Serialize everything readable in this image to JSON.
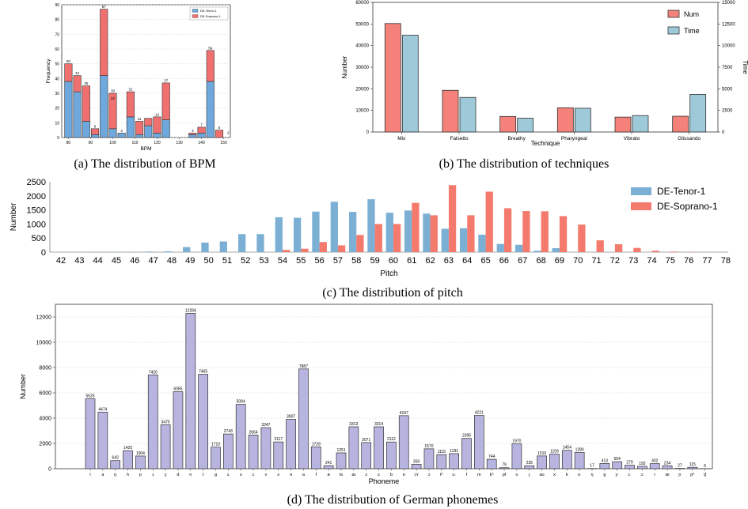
{
  "captions": {
    "a": "(a) The distribution of BPM",
    "b": "(b) The distribution of techniques",
    "c": "(c) The distribution of pitch",
    "d": "(d) The distribution of German phonemes"
  },
  "colors": {
    "tenor_bpm": "#6fa8dc",
    "soprano_bpm": "#f07070",
    "num": "#f4827a",
    "time": "#9ec9d9",
    "tenor_pitch": "#7bafd4",
    "soprano_pitch": "#f47a6e",
    "phoneme": "#b8b4e0"
  },
  "chart_data": [
    {
      "type": "bar",
      "stacked": true,
      "xlabel": "BPM",
      "ylabel": "Frequency",
      "ylim": [
        0,
        90
      ],
      "yticks": [
        0,
        10,
        20,
        30,
        40,
        50,
        60,
        70,
        80,
        90
      ],
      "xticks": [
        80,
        90,
        100,
        110,
        120,
        130,
        140,
        150
      ],
      "x": [
        80,
        84,
        88,
        92,
        96,
        100,
        104,
        108,
        112,
        116,
        120,
        124,
        128,
        136,
        140,
        144,
        148
      ],
      "series": [
        {
          "name": "DE-Tenor-1",
          "values": [
            38,
            31,
            11,
            2,
            42,
            6,
            3,
            14,
            2,
            8,
            3,
            12,
            0,
            2,
            3,
            38,
            0
          ]
        },
        {
          "name": "DE-Soprano-1",
          "values": [
            12,
            11,
            24,
            4,
            45,
            24,
            0,
            17,
            9,
            5,
            11,
            25,
            0,
            1,
            4,
            21,
            5
          ]
        }
      ],
      "totals": [
        50,
        42,
        35,
        6,
        87,
        30,
        3,
        31,
        11,
        13,
        14,
        37,
        0,
        3,
        7,
        59,
        5
      ],
      "total_labels": [
        "50",
        "42",
        "35",
        "6",
        "87",
        "30",
        "3",
        "31",
        "11",
        "",
        "14",
        "37",
        "",
        "3",
        "7",
        "59",
        "5"
      ],
      "inner_labels": [
        "",
        "",
        "",
        "",
        "",
        "22",
        "",
        "",
        "",
        "",
        "",
        "",
        "",
        "",
        "",
        "",
        ""
      ],
      "extra_label": {
        "x": 152,
        "text": "2"
      },
      "legend": "top-right"
    },
    {
      "type": "bar",
      "xlabel": "Technique",
      "ylabel": "Number",
      "y2label": "Time",
      "categories": [
        "Mix",
        "Falsetto",
        "Breathy",
        "Pharyngeal",
        "Vibrato",
        "Glissando"
      ],
      "ylim": [
        0,
        60000
      ],
      "yticks": [
        0,
        10000,
        20000,
        30000,
        40000,
        50000,
        60000
      ],
      "y2lim": [
        0,
        15000
      ],
      "y2ticks": [
        0,
        2500,
        5000,
        7500,
        10000,
        12500,
        15000
      ],
      "series": [
        {
          "name": "Num",
          "axis": "left",
          "values": [
            50200,
            19300,
            7200,
            11200,
            6900,
            7300
          ]
        },
        {
          "name": "Time",
          "axis": "right",
          "values": [
            11200,
            4000,
            1600,
            2750,
            1900,
            4350
          ]
        }
      ],
      "legend": "top-right"
    },
    {
      "type": "bar",
      "xlabel": "Pitch",
      "ylabel": "Number",
      "ylim": [
        0,
        2500
      ],
      "yticks": [
        0,
        500,
        1000,
        1500,
        2000,
        2500
      ],
      "categories": [
        "42",
        "43",
        "44",
        "45",
        "46",
        "47",
        "48",
        "49",
        "50",
        "51",
        "52",
        "53",
        "54",
        "55",
        "56",
        "57",
        "58",
        "59",
        "60",
        "61",
        "62",
        "63",
        "64",
        "65",
        "66",
        "67",
        "68",
        "69",
        "70",
        "71",
        "72",
        "73",
        "74",
        "75",
        "76",
        "77",
        "78"
      ],
      "series": [
        {
          "name": "DE-Tenor-1",
          "values": [
            0,
            0,
            5,
            15,
            5,
            20,
            30,
            180,
            340,
            380,
            640,
            640,
            1240,
            1220,
            1440,
            1790,
            1430,
            1880,
            1400,
            1480,
            1370,
            830,
            850,
            620,
            290,
            260,
            50,
            140,
            0,
            0,
            0,
            0,
            0,
            0,
            0,
            0,
            0
          ]
        },
        {
          "name": "DE-Soprano-1",
          "values": [
            0,
            0,
            0,
            0,
            0,
            0,
            0,
            0,
            0,
            0,
            0,
            0,
            80,
            120,
            360,
            240,
            610,
            1000,
            1000,
            1750,
            1310,
            2380,
            1310,
            2150,
            1560,
            1460,
            1450,
            1280,
            980,
            420,
            280,
            150,
            50,
            20,
            5,
            0,
            0
          ]
        }
      ],
      "legend": "top-right"
    },
    {
      "type": "bar",
      "xlabel": "Phoneme",
      "ylabel": "Number",
      "ylim": [
        0,
        13000
      ],
      "yticks": [
        0,
        2000,
        4000,
        6000,
        8000,
        10000,
        12000
      ],
      "categories": [
        "l",
        "a",
        "ŋ",
        "h",
        "p",
        "ɪ",
        "ç",
        "d",
        "n",
        "t",
        "g",
        "ɛ",
        "s",
        "c",
        "v",
        "ʌ",
        "ə",
        "a",
        "f",
        "ø",
        "ts",
        "aɪ",
        "z",
        "ɛ",
        "b",
        "e",
        "ɔʏ",
        "ɔ",
        "tʰ",
        "uː",
        "f",
        "m",
        "kʰ",
        "pf",
        "o",
        "j",
        "aʊ",
        "x",
        "k",
        "oː",
        "ŋ",
        "ɡ",
        "yː",
        "ɪː",
        "ɔː",
        "r",
        "œ",
        "ɲ",
        "pʰ",
        "tʃ"
      ],
      "values": [
        5525,
        4474,
        642,
        1425,
        1004,
        7420,
        3475,
        6085,
        12284,
        7465,
        1710,
        2743,
        5094,
        2664,
        3247,
        2117,
        3907,
        7887,
        1728,
        241,
        1251,
        3313,
        2071,
        3314,
        2112,
        4197,
        350,
        1570,
        1115,
        1191,
        2395,
        4221,
        744,
        79,
        1970,
        235,
        1010,
        1159,
        1454,
        1280,
        17,
        413,
        554,
        279,
        192,
        402,
        234,
        27,
        115,
        6
      ],
      "data_labels": [
        "5525",
        "4474",
        "642",
        "1425",
        "1004",
        "7420",
        "3475",
        "6085",
        "12284",
        "7465",
        "1710",
        "2743",
        "5094",
        "2664",
        "3247",
        "2117",
        "3907",
        "7887",
        "1728",
        "241",
        "1251",
        "3313",
        "2071",
        "3314",
        "2112",
        "4197",
        "350",
        "1570",
        "1115",
        "1191",
        "2395",
        "4221",
        "744",
        "79",
        "1970",
        "235",
        "1010",
        "1159",
        "1454",
        "1280",
        "17",
        "413",
        "554",
        "279",
        "192",
        "402",
        "234",
        "27",
        "115",
        "6"
      ]
    }
  ]
}
